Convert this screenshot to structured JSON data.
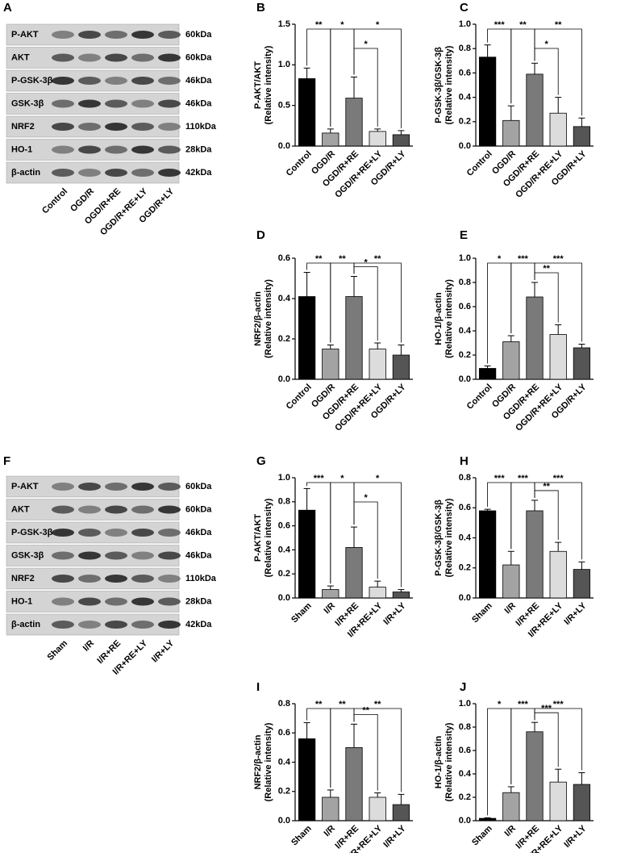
{
  "blots": [
    {
      "panel": "A",
      "rows": [
        {
          "protein": "P-AKT",
          "kda": "60kDa"
        },
        {
          "protein": "AKT",
          "kda": "60kDa"
        },
        {
          "protein": "P-GSK-3β",
          "kda": "46kDa"
        },
        {
          "protein": "GSK-3β",
          "kda": "46kDa"
        },
        {
          "protein": "NRF2",
          "kda": "110kDa"
        },
        {
          "protein": "HO-1",
          "kda": "28kDa"
        },
        {
          "protein": "β-actin",
          "kda": "42kDa"
        }
      ],
      "lanes": [
        "Control",
        "OGD/R",
        "OGD/R+RE",
        "OGD/R+RE+LY",
        "OGD/R+LY"
      ]
    },
    {
      "panel": "F",
      "rows": [
        {
          "protein": "P-AKT",
          "kda": "60kDa"
        },
        {
          "protein": "AKT",
          "kda": "60kDa"
        },
        {
          "protein": "P-GSK-3β",
          "kda": "46kDa"
        },
        {
          "protein": "GSK-3β",
          "kda": "46kDa"
        },
        {
          "protein": "NRF2",
          "kda": "110kDa"
        },
        {
          "protein": "HO-1",
          "kda": "28kDa"
        },
        {
          "protein": "β-actin",
          "kda": "42kDa"
        }
      ],
      "lanes": [
        "Sham",
        "I/R",
        "I/R+RE",
        "I/R+RE+LY",
        "I/R+LY"
      ]
    }
  ],
  "chart_data": [
    {
      "panel": "B",
      "type": "bar",
      "ylabel": [
        "P-AKT/AKT",
        "(Relative intensity)"
      ],
      "categories": [
        "Control",
        "OGD/R",
        "OGD/R+RE",
        "OGD/R+RE+LY",
        "OGD/R+LY"
      ],
      "values": [
        0.83,
        0.16,
        0.59,
        0.18,
        0.14
      ],
      "errors": [
        0.13,
        0.05,
        0.26,
        0.03,
        0.05
      ],
      "colors": [
        "#000000",
        "#a3a3a3",
        "#7a7a7a",
        "#dcdcdc",
        "#555555"
      ],
      "ylim": [
        0,
        1.5
      ],
      "yticks": [
        {
          "value": 0,
          "label": "0.0"
        },
        0.5,
        {
          "value": 1,
          "label": "1.0"
        },
        1.5
      ],
      "comparisons": [
        {
          "pair": [
            0,
            1
          ],
          "label": "**"
        },
        {
          "pair": [
            1,
            2
          ],
          "label": "*"
        },
        {
          "pair": [
            2,
            4
          ],
          "label": "*"
        },
        {
          "pair": [
            2,
            3
          ],
          "label": "*"
        }
      ]
    },
    {
      "panel": "C",
      "type": "bar",
      "ylabel": [
        "P-GSK-3β/GSK-3β",
        "(Relative intensity)"
      ],
      "categories": [
        "Control",
        "OGD/R",
        "OGD/R+RE",
        "OGD/R+RE+LY",
        "OGD/R+LY"
      ],
      "values": [
        0.73,
        0.21,
        0.59,
        0.27,
        0.16
      ],
      "errors": [
        0.1,
        0.12,
        0.09,
        0.13,
        0.07
      ],
      "colors": [
        "#000000",
        "#a3a3a3",
        "#7a7a7a",
        "#dcdcdc",
        "#555555"
      ],
      "ylim": [
        0,
        1
      ],
      "yticks": [
        {
          "value": 0,
          "label": "0.0"
        },
        0.2,
        0.4,
        0.6,
        0.8,
        {
          "value": 1,
          "label": "1.0"
        }
      ],
      "comparisons": [
        {
          "pair": [
            0,
            1
          ],
          "label": "***"
        },
        {
          "pair": [
            1,
            2
          ],
          "label": "**"
        },
        {
          "pair": [
            2,
            4
          ],
          "label": "**"
        },
        {
          "pair": [
            2,
            3
          ],
          "label": "*"
        }
      ]
    },
    {
      "panel": "D",
      "type": "bar",
      "ylabel": [
        "NRF2/β-actin",
        "(Relative intensity)"
      ],
      "categories": [
        "Control",
        "OGD/R",
        "OGD/R+RE",
        "OGD/R+RE+LY",
        "OGD/R+LY"
      ],
      "values": [
        0.41,
        0.15,
        0.41,
        0.15,
        0.12
      ],
      "errors": [
        0.12,
        0.02,
        0.1,
        0.03,
        0.05
      ],
      "colors": [
        "#000000",
        "#a3a3a3",
        "#7a7a7a",
        "#dcdcdc",
        "#555555"
      ],
      "ylim": [
        0,
        0.6
      ],
      "yticks": [
        {
          "value": 0,
          "label": "0.0"
        },
        0.2,
        0.4,
        0.6
      ],
      "comparisons": [
        {
          "pair": [
            0,
            1
          ],
          "label": "**"
        },
        {
          "pair": [
            1,
            2
          ],
          "label": "**"
        },
        {
          "pair": [
            2,
            4
          ],
          "label": "**"
        },
        {
          "pair": [
            2,
            3
          ],
          "label": "*"
        }
      ]
    },
    {
      "panel": "E",
      "type": "bar",
      "ylabel": [
        "HO-1/β-actin",
        "(Relative intensity)"
      ],
      "categories": [
        "Control",
        "OGD/R",
        "OGD/R+RE",
        "OGD/R+RE+LY",
        "OGD/R+LY"
      ],
      "values": [
        0.09,
        0.31,
        0.68,
        0.37,
        0.26
      ],
      "errors": [
        0.02,
        0.05,
        0.12,
        0.08,
        0.03
      ],
      "colors": [
        "#000000",
        "#a3a3a3",
        "#7a7a7a",
        "#dcdcdc",
        "#555555"
      ],
      "ylim": [
        0,
        1
      ],
      "yticks": [
        {
          "value": 0,
          "label": "0.0"
        },
        0.2,
        0.4,
        0.6,
        0.8,
        {
          "value": 1,
          "label": "1.0"
        }
      ],
      "comparisons": [
        {
          "pair": [
            0,
            1
          ],
          "label": "*"
        },
        {
          "pair": [
            1,
            2
          ],
          "label": "***"
        },
        {
          "pair": [
            2,
            4
          ],
          "label": "***"
        },
        {
          "pair": [
            2,
            3
          ],
          "label": "**"
        }
      ]
    },
    {
      "panel": "G",
      "type": "bar",
      "ylabel": [
        "P-AKT/AKT",
        "(Relative intensity)"
      ],
      "categories": [
        "Sham",
        "I/R",
        "I/R+RE",
        "I/R+RE+LY",
        "I/R+LY"
      ],
      "values": [
        0.73,
        0.07,
        0.42,
        0.09,
        0.05
      ],
      "errors": [
        0.18,
        0.03,
        0.17,
        0.05,
        0.02
      ],
      "colors": [
        "#000000",
        "#a3a3a3",
        "#7a7a7a",
        "#dcdcdc",
        "#555555"
      ],
      "ylim": [
        0,
        1
      ],
      "yticks": [
        {
          "value": 0,
          "label": "0.0"
        },
        0.2,
        0.4,
        0.6,
        0.8,
        {
          "value": 1,
          "label": "1.0"
        }
      ],
      "comparisons": [
        {
          "pair": [
            0,
            1
          ],
          "label": "***"
        },
        {
          "pair": [
            1,
            2
          ],
          "label": "*"
        },
        {
          "pair": [
            2,
            4
          ],
          "label": "*"
        },
        {
          "pair": [
            2,
            3
          ],
          "label": "*"
        }
      ]
    },
    {
      "panel": "H",
      "type": "bar",
      "ylabel": [
        "P-GSK-3β/GSK-3β",
        "(Relative intensity)"
      ],
      "categories": [
        "Sham",
        "I/R",
        "I/R+RE",
        "I/R+RE+LY",
        "I/R+LY"
      ],
      "values": [
        0.58,
        0.22,
        0.58,
        0.31,
        0.19
      ],
      "errors": [
        0.01,
        0.09,
        0.07,
        0.06,
        0.05
      ],
      "colors": [
        "#000000",
        "#a3a3a3",
        "#7a7a7a",
        "#dcdcdc",
        "#555555"
      ],
      "ylim": [
        0,
        0.8
      ],
      "yticks": [
        {
          "value": 0,
          "label": "0.0"
        },
        0.2,
        0.4,
        0.6,
        0.8
      ],
      "comparisons": [
        {
          "pair": [
            0,
            1
          ],
          "label": "***"
        },
        {
          "pair": [
            1,
            2
          ],
          "label": "***"
        },
        {
          "pair": [
            2,
            4
          ],
          "label": "***"
        },
        {
          "pair": [
            2,
            3
          ],
          "label": "**"
        }
      ]
    },
    {
      "panel": "I",
      "type": "bar",
      "ylabel": [
        "NRF2/β-actin",
        "(Relative intensity)"
      ],
      "categories": [
        "Sham",
        "I/R",
        "I/R+RE",
        "I/R+RE+LY",
        "I/R+LY"
      ],
      "values": [
        0.56,
        0.16,
        0.5,
        0.16,
        0.11
      ],
      "errors": [
        0.11,
        0.05,
        0.16,
        0.03,
        0.07
      ],
      "colors": [
        "#000000",
        "#a3a3a3",
        "#7a7a7a",
        "#dcdcdc",
        "#555555"
      ],
      "ylim": [
        0,
        0.8
      ],
      "yticks": [
        {
          "value": 0,
          "label": "0.0"
        },
        0.2,
        0.4,
        0.6,
        0.8
      ],
      "comparisons": [
        {
          "pair": [
            0,
            1
          ],
          "label": "**"
        },
        {
          "pair": [
            1,
            2
          ],
          "label": "**"
        },
        {
          "pair": [
            2,
            4
          ],
          "label": "**"
        },
        {
          "pair": [
            2,
            3
          ],
          "label": "**"
        }
      ]
    },
    {
      "panel": "J",
      "type": "bar",
      "ylabel": [
        "HO-1/β-actin",
        "(Relative intensity)"
      ],
      "categories": [
        "Sham",
        "I/R",
        "I/R+RE",
        "I/R+RE+LY",
        "I/R+LY"
      ],
      "values": [
        0.02,
        0.24,
        0.76,
        0.33,
        0.31
      ],
      "errors": [
        0.005,
        0.05,
        0.08,
        0.11,
        0.1
      ],
      "colors": [
        "#000000",
        "#a3a3a3",
        "#7a7a7a",
        "#dcdcdc",
        "#555555"
      ],
      "ylim": [
        0,
        1
      ],
      "yticks": [
        {
          "value": 0,
          "label": "0.0"
        },
        0.2,
        0.4,
        0.6,
        0.8,
        {
          "value": 1,
          "label": "1.0"
        }
      ],
      "comparisons": [
        {
          "pair": [
            0,
            1
          ],
          "label": "*"
        },
        {
          "pair": [
            1,
            2
          ],
          "label": "***"
        },
        {
          "pair": [
            2,
            4
          ],
          "label": "***"
        },
        {
          "pair": [
            2,
            3
          ],
          "label": "***"
        }
      ]
    }
  ]
}
